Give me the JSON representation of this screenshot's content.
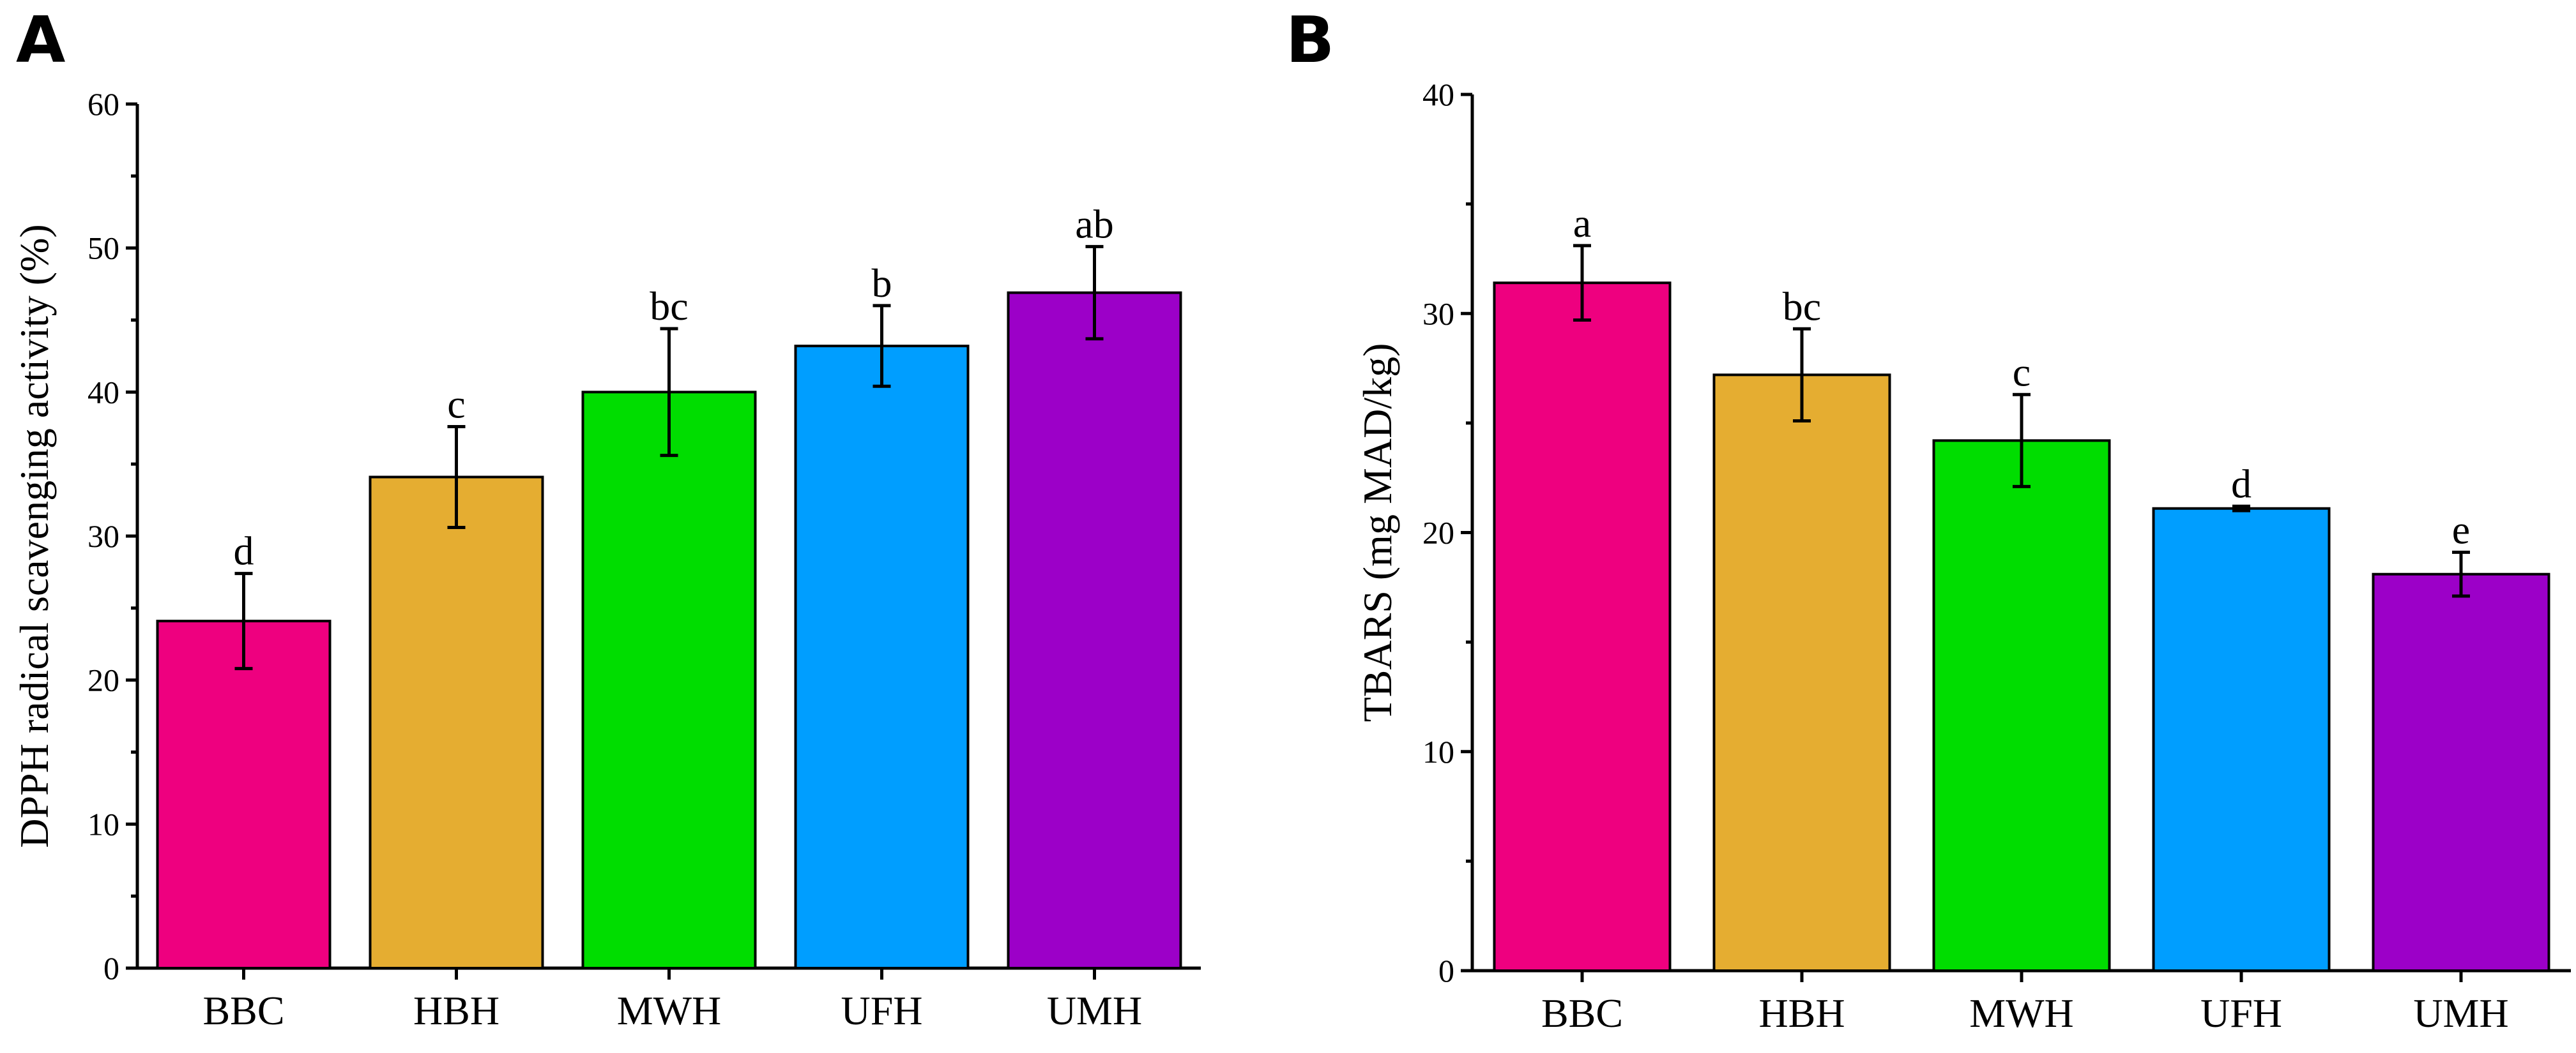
{
  "chart_data": [
    {
      "panel": "A",
      "type": "bar",
      "categories": [
        "BBC",
        "HBH",
        "MWH",
        "UFH",
        "UMH"
      ],
      "values": [
        24.1,
        34.1,
        40.0,
        43.2,
        46.9
      ],
      "errors": [
        3.3,
        3.5,
        4.4,
        2.8,
        3.2
      ],
      "significance": [
        "d",
        "c",
        "bc",
        "b",
        "ab"
      ],
      "colors": [
        "#EE007F",
        "#E5AD31",
        "#00DD00",
        "#009EFF",
        "#9C00C8"
      ],
      "ylabel": "DPPH radical scavenging activity (%)",
      "xlabel": "",
      "ylim": [
        0,
        60
      ],
      "yticks": [
        0,
        10,
        20,
        30,
        40,
        50,
        60
      ]
    },
    {
      "panel": "B",
      "type": "bar",
      "categories": [
        "BBC",
        "HBH",
        "MWH",
        "UFH",
        "UMH"
      ],
      "values": [
        31.4,
        27.2,
        24.2,
        21.1,
        18.1
      ],
      "errors": [
        1.7,
        2.1,
        2.1,
        0.1,
        1.0
      ],
      "significance": [
        "a",
        "bc",
        "c",
        "d",
        "e"
      ],
      "colors": [
        "#EE007F",
        "#E5AD31",
        "#00DD00",
        "#009EFF",
        "#9C00C8"
      ],
      "ylabel": "TBARS (mg MAD/kg)",
      "xlabel": "",
      "ylim": [
        0,
        40
      ],
      "yticks": [
        0,
        10,
        20,
        30,
        40
      ]
    }
  ]
}
